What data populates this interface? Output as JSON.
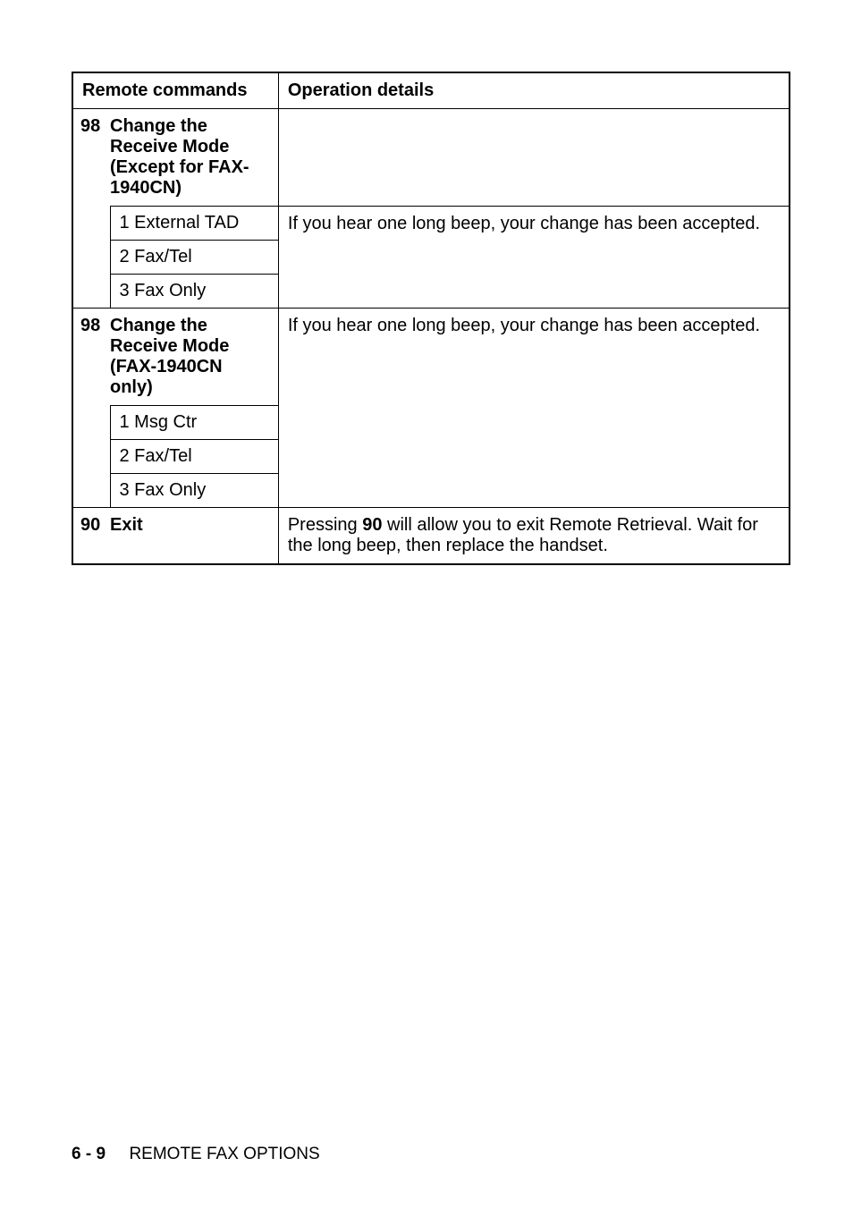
{
  "table": {
    "header": {
      "left": "Remote commands",
      "right": "Operation details"
    },
    "rows": [
      {
        "code": "98",
        "label": "Change the Receive Mode\n(Except for FAX-1940CN)",
        "detail": "",
        "sub": [
          {
            "label": "1 External TAD",
            "detail": "If you hear one long beep, your change has been accepted."
          },
          {
            "label": "2 Fax/Tel",
            "detail": ""
          },
          {
            "label": "3 Fax Only",
            "detail": ""
          }
        ]
      },
      {
        "code": "98",
        "label": "Change the Receive Mode\n(FAX-1940CN only)",
        "detail": "If you hear one long beep, your change has been accepted.",
        "sub": [
          {
            "label": "1 Msg Ctr",
            "detail": ""
          },
          {
            "label": "2 Fax/Tel",
            "detail": ""
          },
          {
            "label": "3 Fax Only",
            "detail": ""
          }
        ]
      },
      {
        "code": "90",
        "label": "Exit",
        "detail_pre": "Pressing ",
        "detail_bold": "90",
        "detail_post": " will allow you to exit Remote Retrieval. Wait for the long beep, then replace the handset."
      }
    ]
  },
  "footer": {
    "page": "6 - 9",
    "title": "REMOTE FAX OPTIONS"
  }
}
